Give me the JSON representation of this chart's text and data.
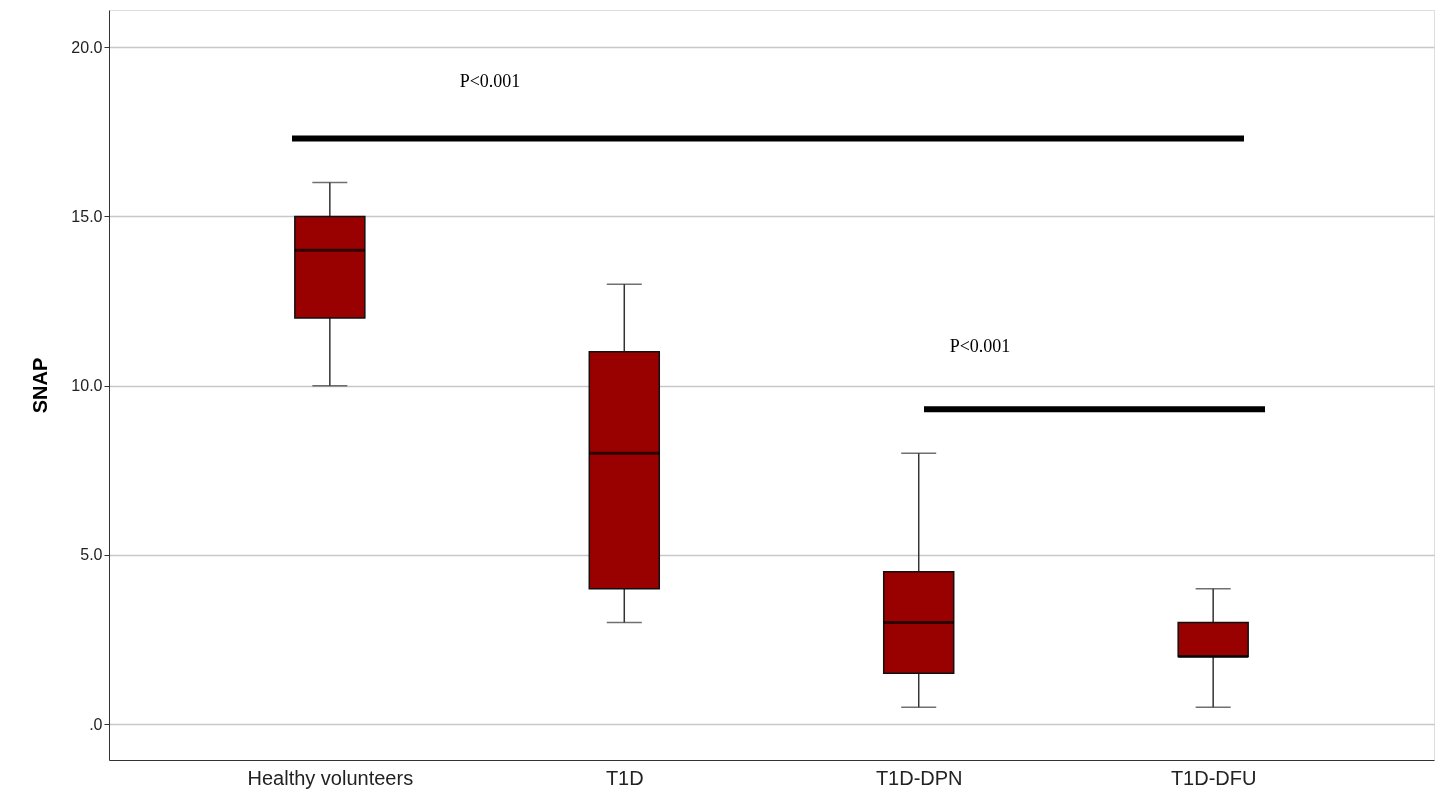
{
  "chart_data": {
    "type": "box",
    "ylabel": "SNAP",
    "categories": [
      "Healthy volunteers",
      "T1D",
      "T1D-DPN",
      "T1D-DFU"
    ],
    "boxes": [
      {
        "low": 10,
        "q1": 12,
        "median": 14,
        "q3": 15,
        "high": 16
      },
      {
        "low": 3,
        "q1": 4,
        "median": 8,
        "q3": 11,
        "high": 13
      },
      {
        "low": 0.5,
        "q1": 1.5,
        "median": 3,
        "q3": 4.5,
        "high": 8
      },
      {
        "low": 0.5,
        "q1": 2,
        "median": 2,
        "q3": 3,
        "high": 4
      }
    ],
    "color": "#990000",
    "ylim": [
      -1.06,
      21.1
    ],
    "yticks": [
      {
        "value": 0,
        "label": ".0"
      },
      {
        "value": 5,
        "label": "5.0"
      },
      {
        "value": 10,
        "label": "10.0"
      },
      {
        "value": 15,
        "label": "15.0"
      },
      {
        "value": 20,
        "label": "20.0"
      }
    ],
    "grid": "y",
    "ref_lines": [
      {
        "axis": "y",
        "value": 17.3,
        "label": "P<0.001"
      },
      {
        "axis": "y",
        "value": 9.3,
        "label": "P<0.001"
      }
    ]
  }
}
